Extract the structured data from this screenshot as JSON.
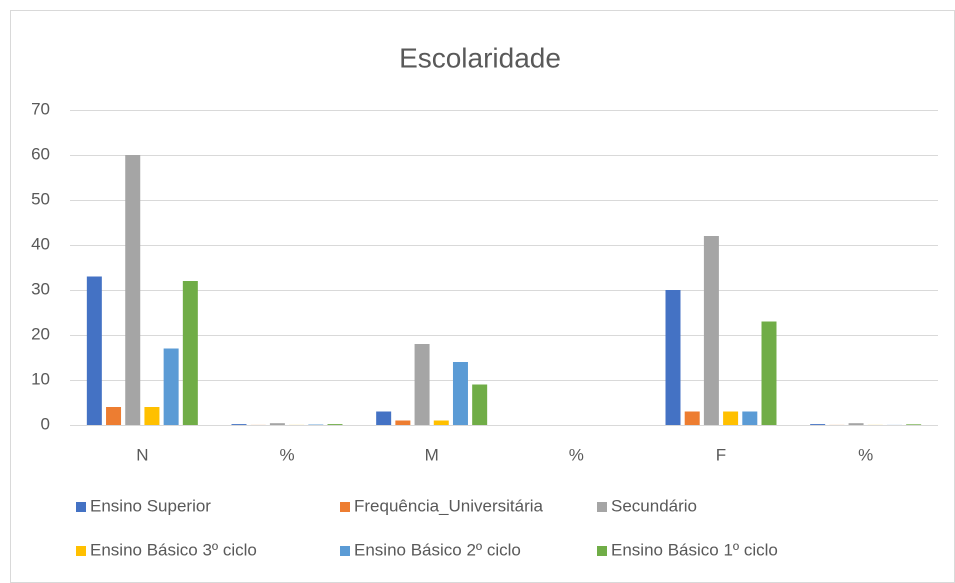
{
  "chart_data": {
    "type": "bar",
    "title": "Escolaridade",
    "categories": [
      "N",
      "%",
      "M",
      "%",
      "F",
      "%"
    ],
    "series": [
      {
        "name": "Ensino Superior",
        "color": "#4472c4",
        "values": [
          33,
          0.2,
          3,
          0,
          30,
          0.2
        ]
      },
      {
        "name": "Frequência_Universitária",
        "color": "#ed7d31",
        "values": [
          4,
          0.02,
          1,
          0,
          3,
          0.02
        ]
      },
      {
        "name": "Secundário",
        "color": "#a5a5a5",
        "values": [
          60,
          0.4,
          18,
          0,
          42,
          0.4
        ]
      },
      {
        "name": "Ensino Básico 3º ciclo",
        "color": "#ffc000",
        "values": [
          4,
          0.02,
          1,
          0,
          3,
          0.02
        ]
      },
      {
        "name": "Ensino Básico 2º ciclo",
        "color": "#5b9bd5",
        "values": [
          17,
          0.1,
          14,
          0,
          3,
          0.02
        ]
      },
      {
        "name": "Ensino Básico 1º ciclo",
        "color": "#70ad47",
        "values": [
          32,
          0.2,
          9,
          0,
          23,
          0.15
        ]
      }
    ],
    "ylim": [
      0,
      70
    ],
    "yticks": [
      0,
      10,
      20,
      30,
      40,
      50,
      60,
      70
    ],
    "grid": true,
    "legend": "bottom"
  }
}
